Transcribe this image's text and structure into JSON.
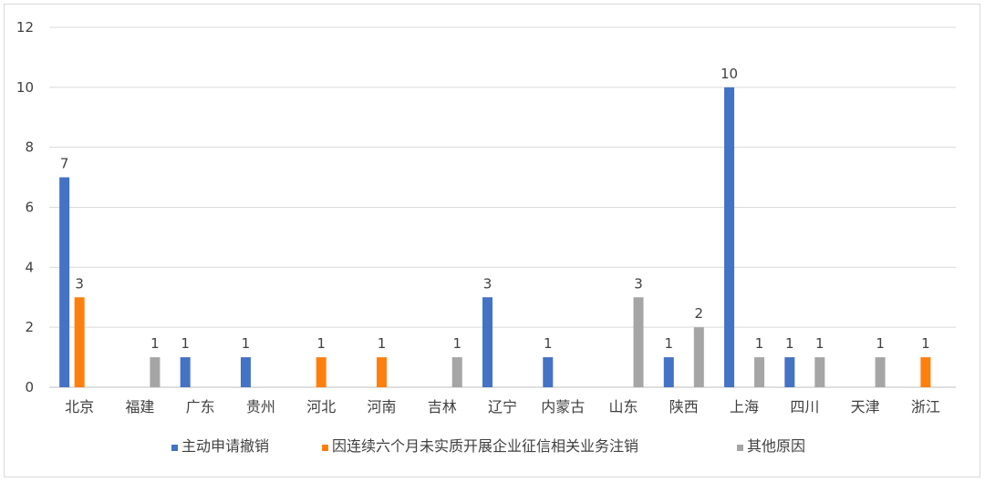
{
  "chart_data": {
    "type": "bar",
    "categories": [
      "北京",
      "福建",
      "广东",
      "贵州",
      "河北",
      "河南",
      "吉林",
      "辽宁",
      "内蒙古",
      "山东",
      "陕西",
      "上海",
      "四川",
      "天津",
      "浙江"
    ],
    "series": [
      {
        "name": "主动申请撤销",
        "color": "#4472c4",
        "values": [
          7,
          0,
          1,
          1,
          0,
          0,
          0,
          3,
          1,
          0,
          1,
          10,
          1,
          0,
          0
        ]
      },
      {
        "name": "因连续六个月未实质开展企业征信相关业务注销",
        "color": "#ff7f0e",
        "values": [
          3,
          0,
          0,
          0,
          1,
          1,
          0,
          0,
          0,
          0,
          0,
          0,
          0,
          0,
          1
        ]
      },
      {
        "name": "其他原因",
        "color": "#a5a5a5",
        "values": [
          0,
          1,
          0,
          0,
          0,
          0,
          1,
          0,
          0,
          3,
          2,
          1,
          1,
          1,
          0
        ]
      }
    ],
    "ylim": [
      0,
      12
    ],
    "yticks": [
      0,
      2,
      4,
      6,
      8,
      10,
      12
    ],
    "grid": true,
    "legend_position": "bottom",
    "title": "",
    "xlabel": "",
    "ylabel": ""
  }
}
